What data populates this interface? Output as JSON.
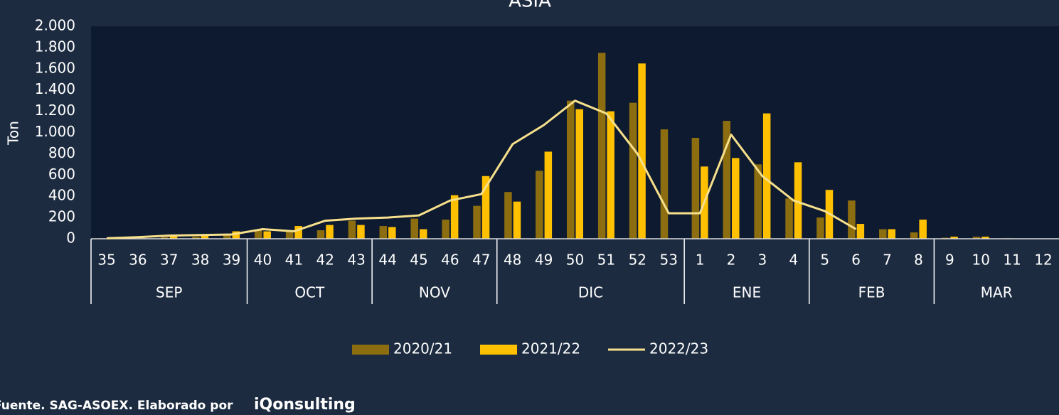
{
  "chart_data": {
    "type": "bar",
    "title": "ASIA",
    "y_label": "Ton",
    "source": "Fuente. SAG-ASOEX. Elaborado por",
    "brand": "iQonsulting",
    "groups": [
      {
        "label": "SEP",
        "categories": [
          "35",
          "36",
          "37",
          "38",
          "39"
        ]
      },
      {
        "label": "OCT",
        "categories": [
          "40",
          "41",
          "42",
          "43"
        ]
      },
      {
        "label": "NOV",
        "categories": [
          "44",
          "45",
          "46",
          "47"
        ]
      },
      {
        "label": "DIC",
        "categories": [
          "48",
          "49",
          "50",
          "51",
          "52",
          "53"
        ]
      },
      {
        "label": "ENE",
        "categories": [
          "1",
          "2",
          "3",
          "4"
        ]
      },
      {
        "label": "FEB",
        "categories": [
          "5",
          "6",
          "7",
          "8"
        ]
      },
      {
        "label": "MAR",
        "categories": [
          "9",
          "10",
          "11",
          "12"
        ]
      }
    ],
    "series": [
      {
        "name": "2020/21",
        "type": "bar",
        "color": "#8c6d0f",
        "values": [
          5,
          5,
          15,
          20,
          40,
          80,
          70,
          80,
          170,
          120,
          190,
          180,
          310,
          440,
          640,
          1300,
          1750,
          1280,
          1030,
          950,
          1110,
          700,
          380,
          200,
          360,
          90,
          60,
          10,
          20,
          5,
          0
        ]
      },
      {
        "name": "2021/22",
        "type": "bar",
        "color": "#ffc000",
        "values": [
          5,
          5,
          25,
          40,
          70,
          70,
          120,
          130,
          130,
          110,
          90,
          410,
          590,
          350,
          820,
          1220,
          1200,
          1650,
          null,
          680,
          760,
          1180,
          720,
          460,
          140,
          90,
          180,
          20,
          20,
          0,
          0
        ]
      },
      {
        "name": "2022/23",
        "type": "line",
        "color": "#f7e08c",
        "values": [
          5,
          15,
          30,
          35,
          40,
          90,
          70,
          170,
          190,
          200,
          220,
          360,
          420,
          890,
          1070,
          1300,
          1180,
          800,
          240,
          240,
          980,
          590,
          360,
          260,
          90,
          null,
          null,
          null,
          null,
          null,
          null
        ]
      }
    ],
    "ylim": [
      0,
      2000
    ],
    "yticks": [
      0,
      200,
      400,
      600,
      800,
      {
        "value": 1000,
        "label": "1.000"
      },
      {
        "value": 1200,
        "label": "1.200"
      },
      {
        "value": 1400,
        "label": "1.400"
      },
      {
        "value": 1600,
        "label": "1.600"
      },
      {
        "value": 1800,
        "label": "1.800"
      },
      {
        "value": 2000,
        "label": "2.000"
      }
    ]
  }
}
